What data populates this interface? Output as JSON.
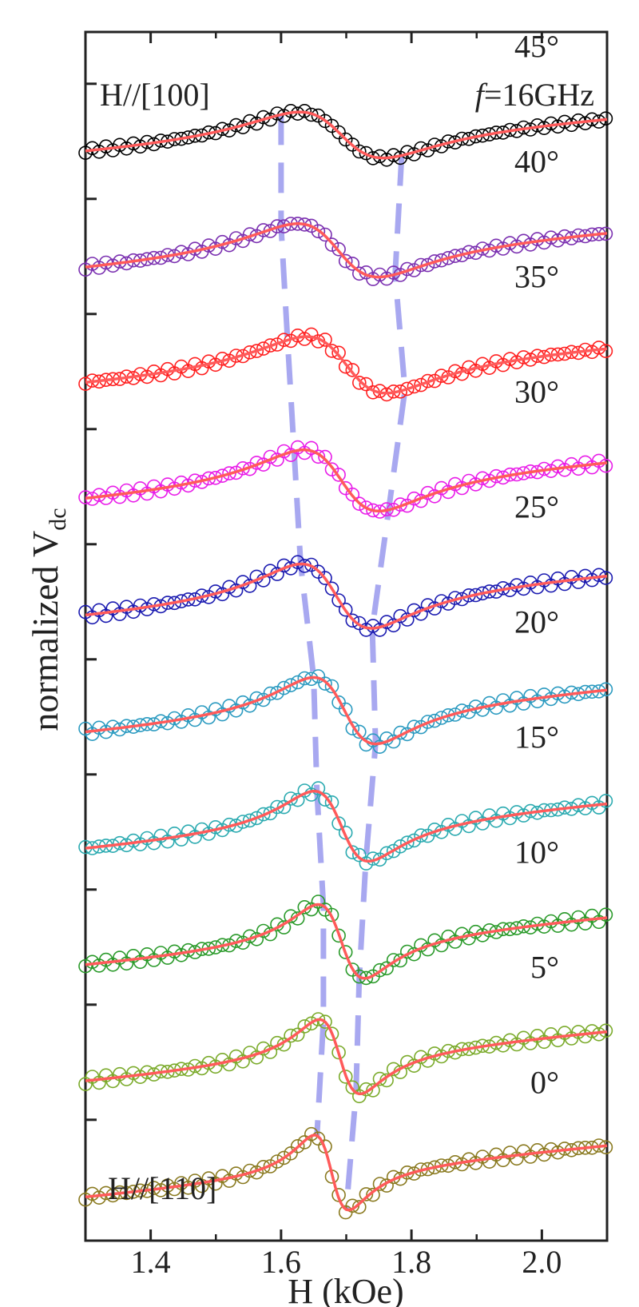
{
  "chart_data": {
    "type": "scatter",
    "title": "",
    "xlabel": "H (kOe)",
    "ylabel_main": "normalized V",
    "ylabel_sub": "dc",
    "xlim": [
      1.3,
      2.1
    ],
    "x_ticks": [
      "1.4",
      "1.6",
      "1.8",
      "2.0"
    ],
    "x_tick_values": [
      1.4,
      1.6,
      1.8,
      2.0
    ],
    "grid": false,
    "annotations": {
      "top_left": "H//[100]",
      "top_right_italic": "f",
      "top_right_rest": "=16GHz",
      "bottom_left": "H//[110]"
    },
    "fit_color": "#ff5a5a",
    "guide_color": "#a8a8f0",
    "series": [
      {
        "angle_label": "45°",
        "color": "#000000",
        "h_max": 1.6,
        "h_min": 1.785,
        "base": 9.0,
        "amp": 0.35,
        "asym": 0.3,
        "width": 0.105
      },
      {
        "angle_label": "40°",
        "color": "#7a2fb0",
        "h_max": 1.6,
        "h_min": 1.775,
        "base": 8.0,
        "amp": 0.4,
        "asym": 0.32,
        "width": 0.1
      },
      {
        "angle_label": "35°",
        "color": "#ff2020",
        "h_max": 1.61,
        "h_min": 1.79,
        "base": 7.0,
        "amp": 0.42,
        "asym": 0.32,
        "width": 0.098
      },
      {
        "angle_label": "30°",
        "color": "#e81ce8",
        "h_max": 1.62,
        "h_min": 1.765,
        "base": 6.0,
        "amp": 0.45,
        "asym": 0.33,
        "width": 0.092
      },
      {
        "angle_label": "25°",
        "color": "#1a1ab0",
        "h_max": 1.63,
        "h_min": 1.74,
        "base": 5.0,
        "amp": 0.47,
        "asym": 0.35,
        "width": 0.085
      },
      {
        "angle_label": "20°",
        "color": "#2a9ac0",
        "h_max": 1.65,
        "h_min": 1.745,
        "base": 4.0,
        "amp": 0.48,
        "asym": 0.36,
        "width": 0.075
      },
      {
        "angle_label": "15°",
        "color": "#2aaab0",
        "h_max": 1.655,
        "h_min": 1.73,
        "base": 3.0,
        "amp": 0.5,
        "asym": 0.37,
        "width": 0.065
      },
      {
        "angle_label": "10°",
        "color": "#2a9a2a",
        "h_max": 1.665,
        "h_min": 1.72,
        "base": 2.0,
        "amp": 0.52,
        "asym": 0.38,
        "width": 0.055
      },
      {
        "angle_label": "5°",
        "color": "#7aaa2a",
        "h_max": 1.665,
        "h_min": 1.715,
        "base": 1.0,
        "amp": 0.52,
        "asym": 0.39,
        "width": 0.048
      },
      {
        "angle_label": "0°",
        "color": "#8a7a20",
        "h_max": 1.655,
        "h_min": 1.7,
        "base": 0.0,
        "amp": 0.52,
        "asym": 0.4,
        "width": 0.04
      }
    ],
    "guide_lines": {
      "h_max": [
        1.6,
        1.6,
        1.61,
        1.62,
        1.63,
        1.65,
        1.655,
        1.665,
        1.665,
        1.655
      ],
      "h_min": [
        1.785,
        1.775,
        1.79,
        1.765,
        1.74,
        1.745,
        1.73,
        1.72,
        1.715,
        1.7
      ]
    }
  }
}
